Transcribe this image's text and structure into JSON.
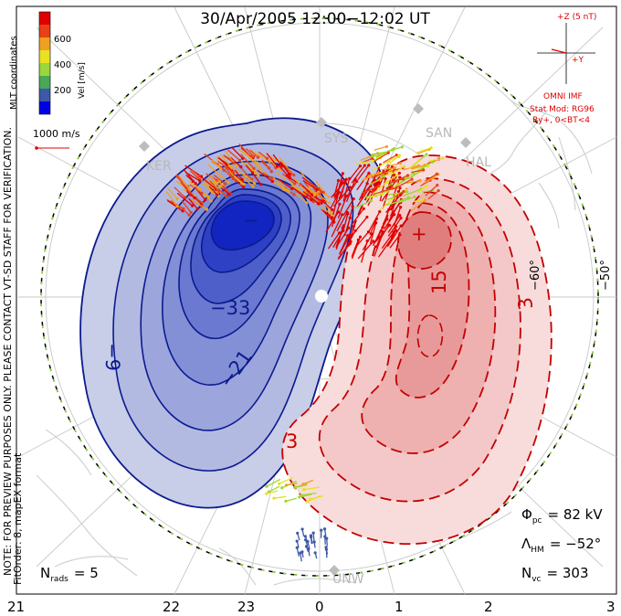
{
  "title": "30/Apr/2005 12:00−12:02 UT",
  "colorbar": {
    "label": "Vel [m/s]",
    "ticks": [
      "600",
      "400",
      "200"
    ],
    "colors": [
      "#0000e6",
      "#3c5aa8",
      "#48a858",
      "#98d838",
      "#e8e020",
      "#f0a020",
      "#e84018",
      "#e00000"
    ]
  },
  "coord_label": "MLT coordinates",
  "ref_vector_label": "1000 m/s",
  "vertical_note": "NOTE: FOR PREVIEW PURPOSES ONLY. PLEASE CONTACT VT-SD STAFF FOR VERIFICATION.",
  "fit_note": "FitOrder: 8, mapEX format",
  "imf": {
    "clock_top": "+Z (5 nT)",
    "clock_right": "+Y",
    "source": "OMNI IMF",
    "model": "Stat Mod: RG96",
    "condition": "By+, 0<BT<4"
  },
  "latitude_labels": [
    "−60°",
    "−50°"
  ],
  "mlt_labels": [
    "21",
    "22",
    "23",
    "0",
    "1",
    "2",
    "3"
  ],
  "stations": [
    "KER",
    "SYS",
    "SAN",
    "HAL",
    "UNW"
  ],
  "contour_labels": {
    "negative": [
      "−33",
      "−21",
      "−9",
      "−"
    ],
    "positive": [
      "15",
      "3",
      "3",
      "+"
    ]
  },
  "stats": {
    "phi_pc_label": "Φ",
    "phi_pc_sub": "pc",
    "phi_pc_value": "= 82 kV",
    "lambda_label": "Λ",
    "lambda_sub": "HM",
    "lambda_value": "= −52°",
    "nvc_label": "N",
    "nvc_sub": "vc",
    "nvc_value": "= 303",
    "nrads_label": "N",
    "nrads_sub": "rads",
    "nrads_value": "= 5"
  }
}
